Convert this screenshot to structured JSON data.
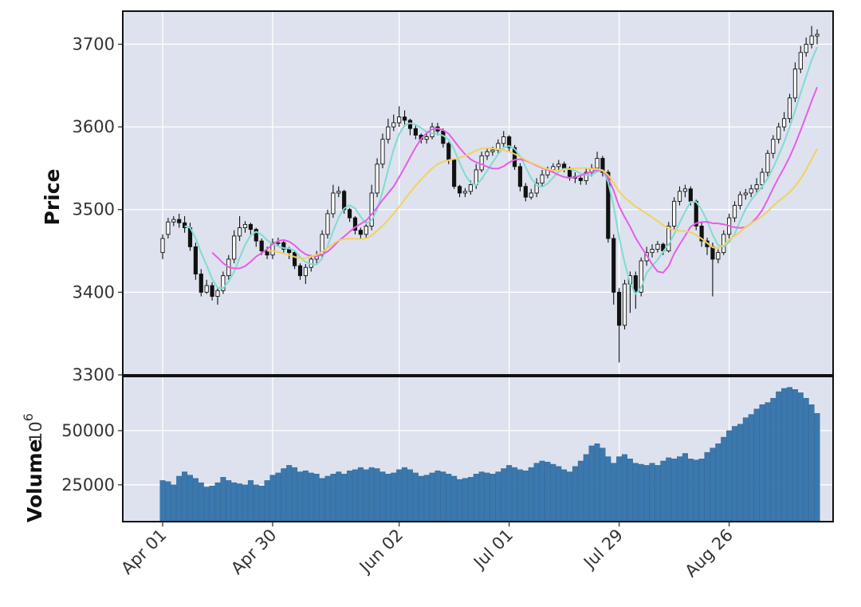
{
  "chart_data": {
    "type": "candlestick",
    "title": "",
    "grid": true,
    "colors": {
      "panel_bg": "#dde2ee",
      "grid": "#ffffff",
      "up_body": "#ffffff",
      "down_body": "#111111",
      "wick": "#111111",
      "volume": "#3a78ae",
      "ma_fast": "#7fdcd0",
      "ma_mid": "#e85ce8",
      "ma_slow": "#f4d15e"
    },
    "x_ticks": [
      "Apr 01",
      "Apr 30",
      "Jun 02",
      "Jul 01",
      "Jul 29",
      "Aug 26"
    ],
    "x_tick_index": [
      0,
      20,
      43,
      63,
      83,
      103
    ],
    "price_panel": {
      "ylabel": "Price",
      "ylim": [
        3300,
        3740
      ],
      "yticks": [
        3300,
        3400,
        3500,
        3600,
        3700
      ],
      "ytick_labels": [
        "3300",
        "3400",
        "3500",
        "3600",
        "3700"
      ]
    },
    "volume_panel": {
      "ylabel": "Volume",
      "offset_label": "10^6",
      "ylim": [
        8000,
        75000
      ],
      "yticks": [
        25000,
        50000
      ],
      "ytick_labels": [
        "25000",
        "50000"
      ]
    },
    "ma_periods": [
      5,
      10,
      20
    ],
    "series": [
      {
        "name": "close",
        "values": [
          3465,
          3485,
          3488,
          3484,
          3478,
          3455,
          3422,
          3400,
          3408,
          3395,
          3402,
          3420,
          3440,
          3468,
          3478,
          3482,
          3476,
          3462,
          3450,
          3445,
          3460,
          3460,
          3452,
          3448,
          3432,
          3420,
          3430,
          3440,
          3445,
          3470,
          3495,
          3520,
          3522,
          3500,
          3490,
          3475,
          3470,
          3480,
          3520,
          3555,
          3585,
          3600,
          3605,
          3612,
          3608,
          3598,
          3590,
          3585,
          3588,
          3600,
          3595,
          3580,
          3560,
          3528,
          3520,
          3522,
          3530,
          3548,
          3565,
          3570,
          3572,
          3580,
          3588,
          3575,
          3552,
          3528,
          3515,
          3520,
          3532,
          3542,
          3548,
          3552,
          3555,
          3550,
          3540,
          3538,
          3535,
          3545,
          3550,
          3562,
          3545,
          3465,
          3400,
          3360,
          3410,
          3420,
          3400,
          3438,
          3448,
          3452,
          3458,
          3450,
          3480,
          3510,
          3522,
          3525,
          3510,
          3480,
          3462,
          3455,
          3440,
          3448,
          3470,
          3490,
          3505,
          3518,
          3520,
          3525,
          3530,
          3545,
          3568,
          3585,
          3600,
          3610,
          3635,
          3670,
          3690,
          3700,
          3710,
          3712
        ]
      },
      {
        "name": "open",
        "values": [
          3448,
          3470,
          3485,
          3488,
          3484,
          3478,
          3455,
          3422,
          3400,
          3408,
          3395,
          3402,
          3420,
          3440,
          3468,
          3478,
          3482,
          3476,
          3462,
          3450,
          3445,
          3460,
          3460,
          3452,
          3448,
          3432,
          3420,
          3430,
          3440,
          3445,
          3470,
          3495,
          3520,
          3522,
          3500,
          3490,
          3475,
          3470,
          3480,
          3520,
          3555,
          3585,
          3600,
          3605,
          3612,
          3608,
          3598,
          3590,
          3585,
          3588,
          3600,
          3595,
          3580,
          3560,
          3528,
          3520,
          3522,
          3530,
          3548,
          3565,
          3570,
          3572,
          3580,
          3588,
          3575,
          3552,
          3528,
          3515,
          3520,
          3532,
          3542,
          3548,
          3552,
          3555,
          3550,
          3540,
          3538,
          3535,
          3545,
          3550,
          3562,
          3545,
          3465,
          3400,
          3360,
          3410,
          3420,
          3400,
          3438,
          3448,
          3452,
          3458,
          3450,
          3480,
          3510,
          3522,
          3525,
          3510,
          3480,
          3462,
          3455,
          3440,
          3448,
          3470,
          3490,
          3505,
          3518,
          3520,
          3525,
          3530,
          3545,
          3568,
          3585,
          3600,
          3610,
          3635,
          3670,
          3690,
          3700,
          3710
        ]
      },
      {
        "name": "high",
        "values": [
          3470,
          3490,
          3492,
          3495,
          3492,
          3484,
          3460,
          3428,
          3415,
          3412,
          3405,
          3425,
          3445,
          3475,
          3492,
          3486,
          3484,
          3478,
          3465,
          3455,
          3465,
          3466,
          3462,
          3455,
          3450,
          3435,
          3434,
          3445,
          3450,
          3475,
          3500,
          3530,
          3528,
          3524,
          3502,
          3492,
          3478,
          3485,
          3530,
          3562,
          3592,
          3610,
          3615,
          3625,
          3620,
          3610,
          3602,
          3592,
          3595,
          3605,
          3605,
          3598,
          3582,
          3562,
          3530,
          3526,
          3535,
          3555,
          3570,
          3574,
          3576,
          3585,
          3595,
          3590,
          3578,
          3556,
          3532,
          3525,
          3538,
          3548,
          3552,
          3556,
          3560,
          3558,
          3552,
          3545,
          3540,
          3550,
          3555,
          3570,
          3565,
          3548,
          3470,
          3405,
          3415,
          3425,
          3425,
          3442,
          3455,
          3458,
          3462,
          3460,
          3485,
          3515,
          3528,
          3530,
          3528,
          3512,
          3485,
          3466,
          3460,
          3452,
          3475,
          3495,
          3510,
          3522,
          3525,
          3530,
          3538,
          3550,
          3572,
          3590,
          3605,
          3618,
          3640,
          3678,
          3698,
          3708,
          3722,
          3718
        ]
      },
      {
        "name": "low",
        "values": [
          3440,
          3465,
          3480,
          3478,
          3472,
          3450,
          3415,
          3395,
          3398,
          3390,
          3385,
          3398,
          3415,
          3435,
          3462,
          3472,
          3470,
          3455,
          3445,
          3440,
          3440,
          3455,
          3448,
          3440,
          3428,
          3415,
          3410,
          3425,
          3435,
          3440,
          3465,
          3490,
          3515,
          3495,
          3485,
          3470,
          3465,
          3465,
          3475,
          3515,
          3550,
          3580,
          3595,
          3600,
          3600,
          3590,
          3585,
          3580,
          3580,
          3585,
          3590,
          3575,
          3555,
          3525,
          3515,
          3515,
          3518,
          3525,
          3545,
          3560,
          3565,
          3568,
          3575,
          3570,
          3548,
          3522,
          3510,
          3512,
          3515,
          3528,
          3538,
          3545,
          3548,
          3545,
          3535,
          3532,
          3530,
          3530,
          3540,
          3545,
          3540,
          3460,
          3385,
          3315,
          3355,
          3375,
          3380,
          3395,
          3432,
          3442,
          3448,
          3445,
          3448,
          3475,
          3505,
          3515,
          3505,
          3475,
          3455,
          3445,
          3395,
          3435,
          3445,
          3465,
          3485,
          3500,
          3512,
          3515,
          3520,
          3525,
          3540,
          3562,
          3580,
          3595,
          3605,
          3630,
          3665,
          3685,
          3695,
          3700
        ]
      },
      {
        "name": "volume",
        "values": [
          27000,
          26500,
          25000,
          29000,
          31000,
          29500,
          28000,
          26000,
          24000,
          24500,
          26000,
          28500,
          27000,
          26000,
          25500,
          25000,
          27000,
          25000,
          24500,
          27000,
          29500,
          30500,
          32500,
          34000,
          33000,
          31000,
          31500,
          30500,
          30000,
          28000,
          29000,
          30000,
          31000,
          30000,
          31500,
          32000,
          33000,
          32000,
          33000,
          32500,
          31000,
          30000,
          30500,
          32000,
          33000,
          32000,
          30500,
          29000,
          29500,
          30500,
          31500,
          31000,
          30000,
          29000,
          27500,
          28000,
          28500,
          30000,
          31000,
          30500,
          30000,
          31000,
          32500,
          34000,
          33000,
          32000,
          31500,
          33000,
          35000,
          36000,
          35500,
          34500,
          33500,
          32000,
          31000,
          33500,
          36000,
          39000,
          43000,
          44000,
          42000,
          38000,
          35000,
          38000,
          39000,
          37000,
          35000,
          34500,
          34000,
          35000,
          34000,
          36000,
          37500,
          37000,
          38000,
          39500,
          37000,
          36500,
          37000,
          40000,
          42000,
          44000,
          47000,
          50000,
          52000,
          53000,
          56000,
          57500,
          60000,
          62000,
          63000,
          65000,
          68000,
          69500,
          70000,
          69000,
          67500,
          65000,
          62000,
          58000
        ]
      }
    ]
  }
}
